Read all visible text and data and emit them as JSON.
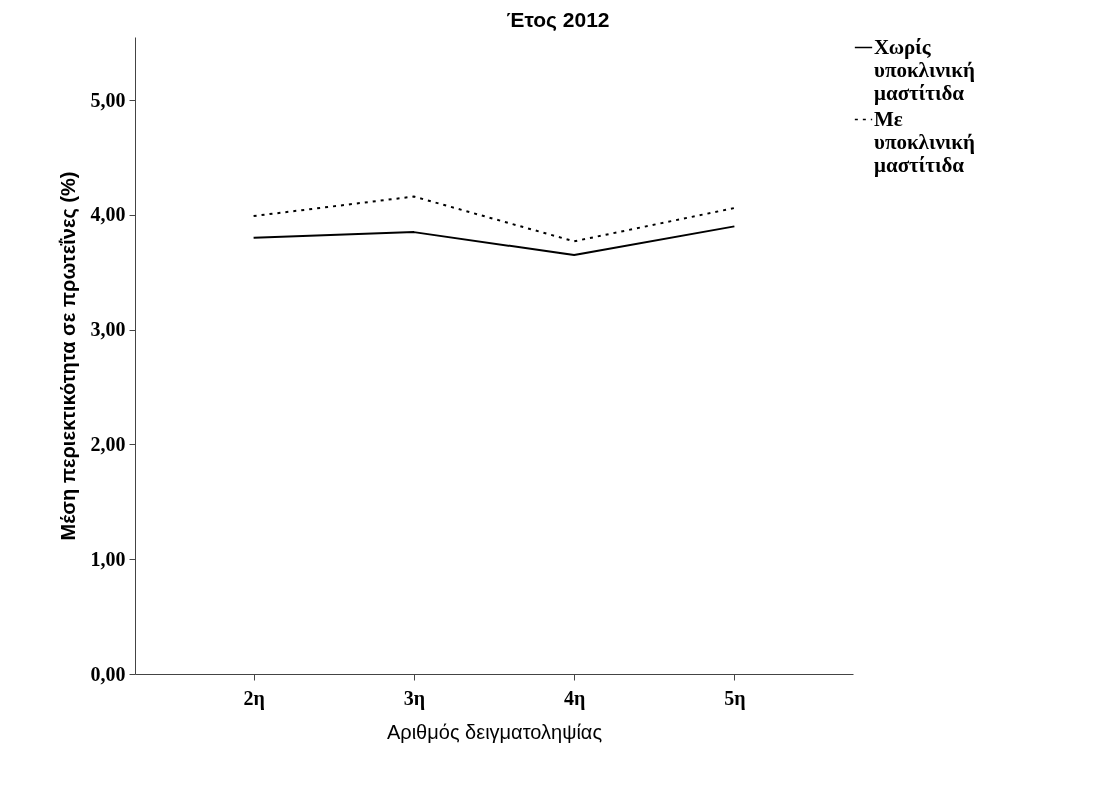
{
  "chart_data": {
    "type": "line",
    "title": "Έτος 2012",
    "xlabel": "Αριθμός δειγματοληψίας",
    "ylabel": "Μέση περιεκτικότητα σε πρωτεΐνες (%)",
    "categories": [
      "2η",
      "3η",
      "4η",
      "5η"
    ],
    "series": [
      {
        "name": "Χωρίς υποκλινική μαστίτιδα",
        "color": "#000000",
        "line_style": "solid",
        "values": [
          3.8,
          3.85,
          3.65,
          3.9
        ]
      },
      {
        "name": "Με υποκλινική μαστίτιδα",
        "color": "#000000",
        "line_style": "dotted",
        "values": [
          3.99,
          4.16,
          3.77,
          4.06
        ]
      }
    ],
    "ylim": [
      0,
      5.55
    ],
    "yticks": [
      {
        "value": 0,
        "label": "0,00"
      },
      {
        "value": 1,
        "label": "1,00"
      },
      {
        "value": 2,
        "label": "2,00"
      },
      {
        "value": 3,
        "label": "3,00"
      },
      {
        "value": 4,
        "label": "4,00"
      },
      {
        "value": 5,
        "label": "5,00"
      }
    ],
    "grid": false,
    "legend": "right",
    "marker": "none"
  }
}
